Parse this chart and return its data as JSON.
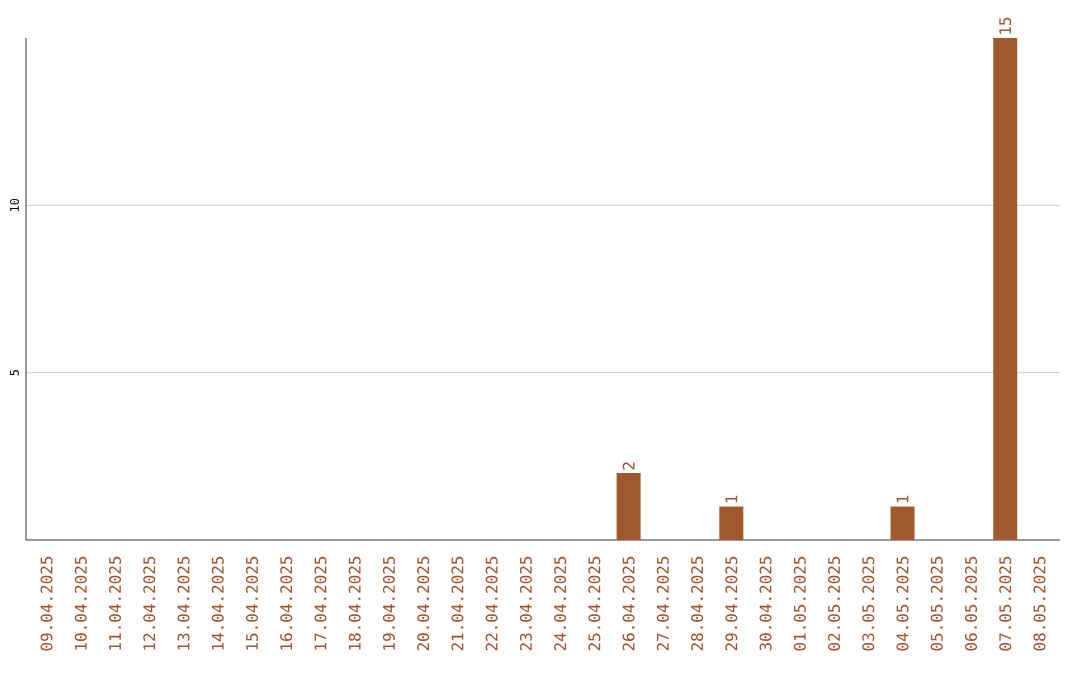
{
  "chart_data": {
    "type": "bar",
    "categories": [
      "09.04.2025",
      "10.04.2025",
      "11.04.2025",
      "12.04.2025",
      "13.04.2025",
      "14.04.2025",
      "15.04.2025",
      "16.04.2025",
      "17.04.2025",
      "18.04.2025",
      "19.04.2025",
      "20.04.2025",
      "21.04.2025",
      "22.04.2025",
      "23.04.2025",
      "24.04.2025",
      "25.04.2025",
      "26.04.2025",
      "27.04.2025",
      "28.04.2025",
      "29.04.2025",
      "30.04.2025",
      "01.05.2025",
      "02.05.2025",
      "03.05.2025",
      "04.05.2025",
      "05.05.2025",
      "06.05.2025",
      "07.05.2025",
      "08.05.2025"
    ],
    "values": [
      0,
      0,
      0,
      0,
      0,
      0,
      0,
      0,
      0,
      0,
      0,
      0,
      0,
      0,
      0,
      0,
      0,
      2,
      0,
      0,
      1,
      0,
      0,
      0,
      0,
      1,
      0,
      0,
      15,
      0
    ],
    "value_labels": [
      null,
      null,
      null,
      null,
      null,
      null,
      null,
      null,
      null,
      null,
      null,
      null,
      null,
      null,
      null,
      null,
      null,
      "2",
      null,
      null,
      "1",
      null,
      null,
      null,
      null,
      "1",
      null,
      null,
      "15",
      null
    ],
    "color": "#a0582c",
    "ylim": [
      0,
      15
    ],
    "yticks": [
      5,
      10
    ],
    "grid": "y"
  }
}
